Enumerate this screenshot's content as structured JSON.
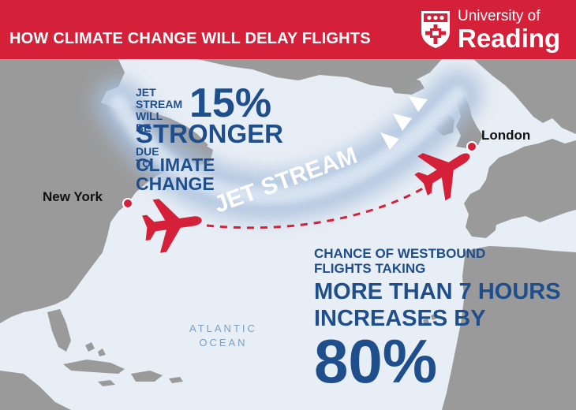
{
  "header": {
    "title": "HOW CLIMATE CHANGE WILL DELAY FLIGHTS"
  },
  "logo": {
    "line1": "University of",
    "line2": "Reading"
  },
  "jet_stat": {
    "line1": "JET",
    "line2": "STREAM",
    "line3": "WILL BE",
    "percent": "15%",
    "stronger": "STRONGER",
    "due_to": "DUE TO",
    "climate": "CLIMATE CHANGE"
  },
  "map": {
    "jet_stream_label": "JET STREAM",
    "ocean_line1": "ATLANTIC",
    "ocean_line2": "OCEAN",
    "cities": {
      "new_york": "New York",
      "london": "London"
    }
  },
  "delay_stat": {
    "line1": "CHANCE OF WESTBOUND",
    "line2": "FLIGHTS TAKING",
    "line3": "MORE THAN 7 HOURS",
    "line4": "INCREASES BY",
    "percent": "80%"
  },
  "colors": {
    "brand_red": "#d5203a",
    "text_blue": "#1f4e8c",
    "land": "#9a9a9a",
    "sea": "#e8eef5"
  },
  "icons": [
    "university-shield-icon",
    "plane-icon",
    "city-marker-icon",
    "arrow-chevron-icon"
  ]
}
